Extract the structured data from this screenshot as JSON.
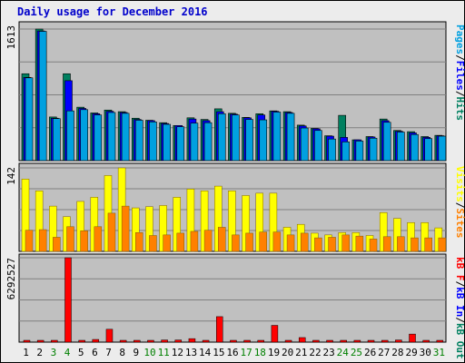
{
  "title": "Daily usage for December 2016",
  "colors": {
    "pages": "#00a0e0",
    "files": "#0000ff",
    "hits": "#008060",
    "sites": "#ff8000",
    "visits": "#ffff00",
    "kb_f": "#ff0000",
    "kb_in": "#0000ff",
    "kb_out": "#008060",
    "weekday_label": "#000000",
    "weekend_label": "#008000",
    "panel_bg": "#c0c0c0",
    "frame_bg": "#ececec"
  },
  "chart_data": [
    {
      "type": "bar",
      "panel": "hits-files-pages",
      "ymax_label": "1613",
      "ylim": [
        0,
        1613
      ],
      "right_labels": [
        {
          "text": "Pages",
          "color": "#00a0e0"
        },
        {
          "text": "/",
          "color": "#000000"
        },
        {
          "text": "Files",
          "color": "#0000ff"
        },
        {
          "text": "/",
          "color": "#000000"
        },
        {
          "text": "Hits",
          "color": "#008060"
        }
      ],
      "categories": [
        "1",
        "2",
        "3",
        "4",
        "5",
        "6",
        "7",
        "8",
        "9",
        "10",
        "11",
        "12",
        "13",
        "14",
        "15",
        "16",
        "17",
        "18",
        "19",
        "20",
        "21",
        "22",
        "23",
        "24",
        "25",
        "26",
        "27",
        "28",
        "29",
        "30",
        "31"
      ],
      "series": [
        {
          "name": "Hits",
          "values": [
            1065,
            1613,
            535,
            1065,
            655,
            585,
            620,
            600,
            520,
            495,
            465,
            430,
            525,
            505,
            635,
            580,
            530,
            575,
            610,
            600,
            435,
            395,
            305,
            555,
            255,
            295,
            510,
            370,
            355,
            295,
            310
          ]
        },
        {
          "name": "Files",
          "values": [
            1020,
            1590,
            520,
            980,
            640,
            575,
            605,
            590,
            505,
            490,
            455,
            430,
            510,
            490,
            600,
            570,
            525,
            560,
            605,
            590,
            425,
            390,
            300,
            285,
            255,
            290,
            490,
            360,
            340,
            285,
            305
          ]
        },
        {
          "name": "Pages",
          "values": [
            1015,
            1585,
            515,
            610,
            625,
            560,
            590,
            580,
            495,
            475,
            445,
            415,
            460,
            465,
            575,
            560,
            505,
            500,
            595,
            580,
            400,
            370,
            265,
            230,
            240,
            275,
            470,
            350,
            320,
            270,
            300
          ]
        }
      ]
    },
    {
      "type": "bar",
      "panel": "visits-sites",
      "ymax_label": "142",
      "ylim": [
        0,
        142
      ],
      "right_labels": [
        {
          "text": "Visits",
          "color": "#ffff00"
        },
        {
          "text": "/",
          "color": "#000000"
        },
        {
          "text": "Sites",
          "color": "#ff8000"
        }
      ],
      "categories": [
        "1",
        "2",
        "3",
        "4",
        "5",
        "6",
        "7",
        "8",
        "9",
        "10",
        "11",
        "12",
        "13",
        "14",
        "15",
        "16",
        "17",
        "18",
        "19",
        "20",
        "21",
        "22",
        "23",
        "24",
        "25",
        "26",
        "27",
        "28",
        "29",
        "30",
        "31"
      ],
      "series": [
        {
          "name": "Visits",
          "values": [
            123,
            103,
            77,
            59,
            85,
            92,
            129,
            142,
            74,
            76,
            78,
            92,
            106,
            103,
            111,
            103,
            95,
            99,
            99,
            41,
            46,
            31,
            28,
            32,
            32,
            27,
            66,
            56,
            49,
            49,
            40
          ]
        },
        {
          "name": "Sites",
          "values": [
            36,
            37,
            24,
            42,
            35,
            42,
            65,
            77,
            32,
            27,
            28,
            31,
            34,
            36,
            41,
            28,
            31,
            33,
            33,
            28,
            31,
            23,
            24,
            28,
            26,
            21,
            25,
            25,
            23,
            23,
            23
          ]
        }
      ]
    },
    {
      "type": "bar",
      "panel": "kbytes",
      "ymax_label": "6292527",
      "ylim": [
        0,
        6292527
      ],
      "right_labels": [
        {
          "text": "kB F",
          "color": "#ff0000"
        },
        {
          "text": "/",
          "color": "#000000"
        },
        {
          "text": "kB In",
          "color": "#0000ff"
        },
        {
          "text": "/",
          "color": "#000000"
        },
        {
          "text": "kB Out",
          "color": "#008060"
        }
      ],
      "categories": [
        "1",
        "2",
        "3",
        "4",
        "5",
        "6",
        "7",
        "8",
        "9",
        "10",
        "11",
        "12",
        "13",
        "14",
        "15",
        "16",
        "17",
        "18",
        "19",
        "20",
        "21",
        "22",
        "23",
        "24",
        "25",
        "26",
        "27",
        "28",
        "29",
        "30",
        "31"
      ],
      "weekend_days": [
        "3",
        "4",
        "10",
        "11",
        "17",
        "18",
        "24",
        "25",
        "31"
      ],
      "series": [
        {
          "name": "kB F",
          "values": [
            60000,
            70000,
            50000,
            6292527,
            70000,
            200000,
            960000,
            100000,
            70000,
            40000,
            160000,
            160000,
            260000,
            70000,
            1900000,
            70000,
            70000,
            60000,
            1250000,
            60000,
            340000,
            60000,
            60000,
            50000,
            60000,
            60000,
            60000,
            160000,
            600000,
            60000,
            60000
          ]
        }
      ]
    }
  ]
}
